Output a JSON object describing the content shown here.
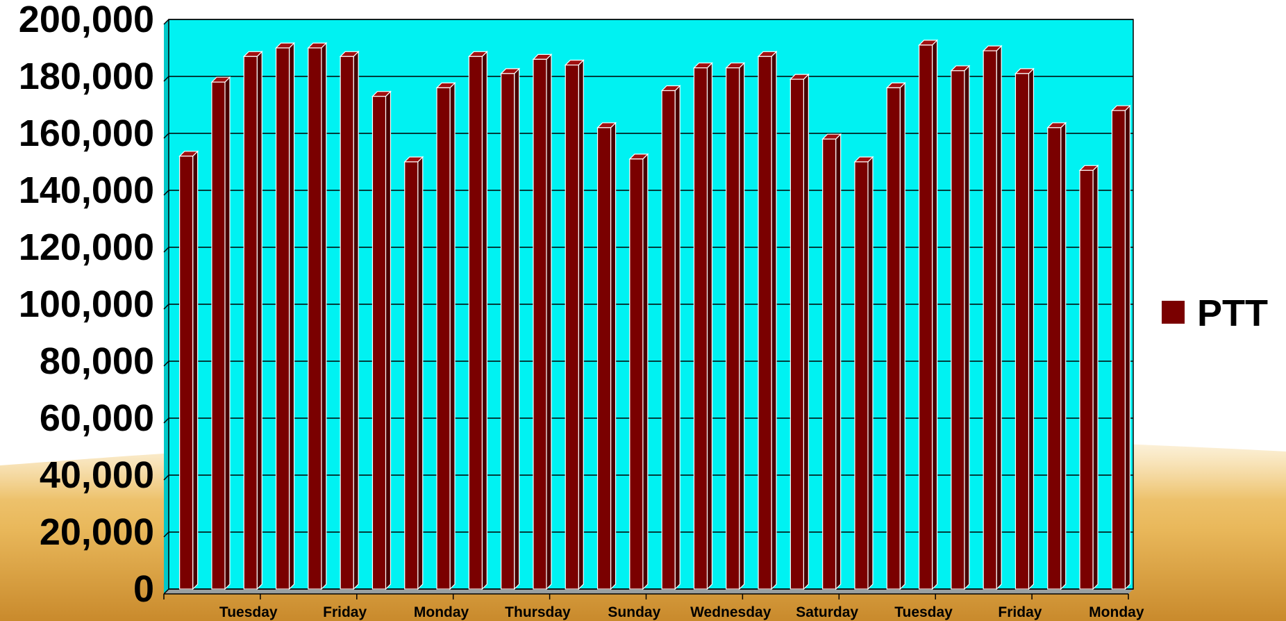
{
  "chart_data": {
    "type": "bar",
    "categories": [
      "",
      "",
      "Tuesday",
      "",
      "",
      "Friday",
      "",
      "",
      "Monday",
      "",
      "",
      "Thursday",
      "",
      "",
      "Sunday",
      "",
      "",
      "Wednesday",
      "",
      "",
      "Saturday",
      "",
      "",
      "Tuesday",
      "",
      "",
      "Friday",
      "",
      "",
      "Monday"
    ],
    "series": [
      {
        "name": "PTT",
        "color": "#7a0000",
        "values": [
          152000,
          178000,
          187000,
          190000,
          190000,
          187000,
          173000,
          150000,
          176000,
          187000,
          181000,
          186000,
          184000,
          162000,
          151000,
          175000,
          183000,
          183000,
          187000,
          179000,
          158000,
          150000,
          176000,
          191000,
          182000,
          189000,
          181000,
          162000,
          147000,
          168000
        ]
      }
    ],
    "ylim": [
      0,
      200000
    ],
    "yticks": [
      {
        "value": 0,
        "label": "0"
      },
      {
        "value": 20000,
        "label": "20,000"
      },
      {
        "value": 40000,
        "label": "40,000"
      },
      {
        "value": 60000,
        "label": "60,000"
      },
      {
        "value": 80000,
        "label": "80,000"
      },
      {
        "value": 100000,
        "label": "100,000"
      },
      {
        "value": 120000,
        "label": "120,000"
      },
      {
        "value": 140000,
        "label": "140,000"
      },
      {
        "value": 160000,
        "label": "160,000"
      },
      {
        "value": 180000,
        "label": "180,000"
      },
      {
        "value": 200000,
        "label": "200,000"
      }
    ],
    "grid": true,
    "legend": {
      "position": "right",
      "label": "PTT"
    },
    "colors": {
      "plot_background": "#00f2f2",
      "bar_front": "#7a0000"
    }
  }
}
